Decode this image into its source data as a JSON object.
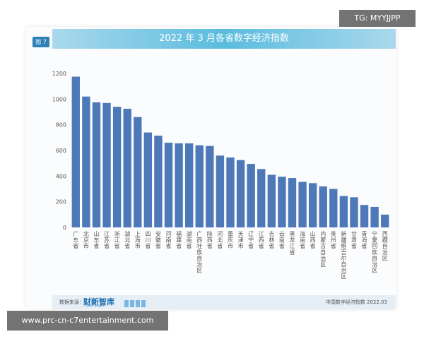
{
  "watermark_top": "TG: MYYJJPP",
  "watermark_bottom": "www.prc-cn-c7entertainment.com",
  "figure_tag": "图 7",
  "chart_data": {
    "type": "bar",
    "title": "2022 年 3 月各省数字经济指数",
    "xlabel": "",
    "ylabel": "",
    "ylim": [
      0,
      1200
    ],
    "yticks": [
      0,
      200,
      400,
      600,
      800,
      1000,
      1200
    ],
    "grid": false,
    "bar_color": "#4e79b8",
    "categories": [
      "广东省",
      "北京市",
      "山东省",
      "江苏省",
      "浙江省",
      "湖北省",
      "上海市",
      "四川省",
      "安徽省",
      "河南省",
      "福建省",
      "湖南省",
      "广西壮族自治区",
      "陕西省",
      "河北省",
      "重庆市",
      "天津市",
      "辽宁省",
      "江西省",
      "吉林省",
      "云南省",
      "黑龙江省",
      "海南省",
      "山西省",
      "内蒙古自治区",
      "贵州省",
      "新疆维吾尔自治区",
      "甘肃省",
      "青海省",
      "宁夏回族自治区",
      "西藏自治区"
    ],
    "values": [
      1175,
      1020,
      975,
      970,
      940,
      925,
      860,
      740,
      715,
      660,
      655,
      655,
      640,
      635,
      560,
      545,
      525,
      495,
      455,
      410,
      395,
      385,
      355,
      345,
      320,
      300,
      245,
      235,
      175,
      160,
      100
    ]
  },
  "footer": {
    "source_label": "数据来源：",
    "logo_text": "财新智库",
    "logo_sub": "Caixin Insight",
    "right_text": "中国数字经济指数 2022.03"
  }
}
